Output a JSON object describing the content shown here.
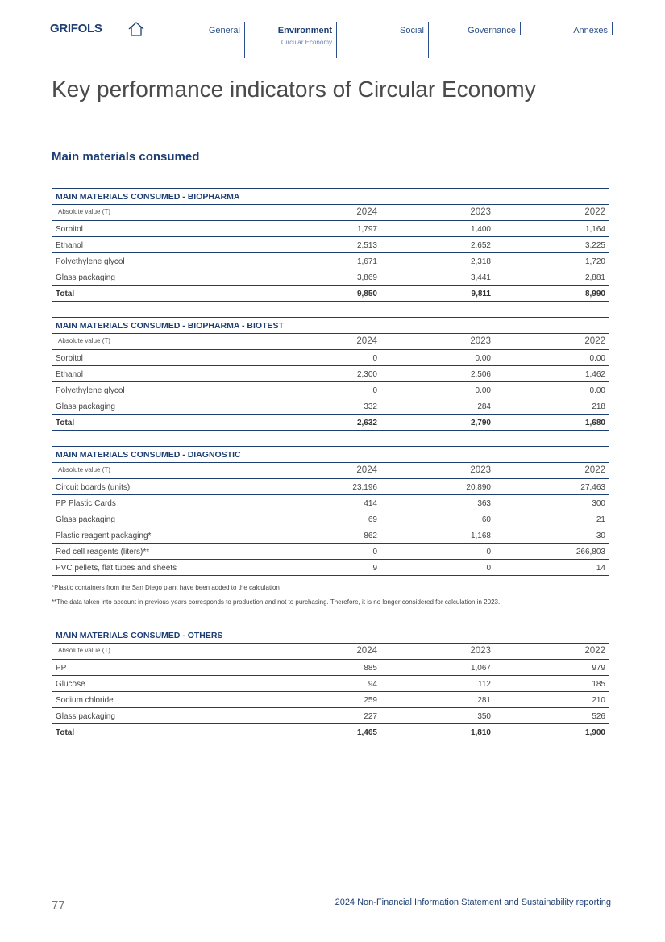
{
  "header": {
    "logo": "GRIFOLS",
    "nav": [
      {
        "label": "General"
      },
      {
        "label": "Environment",
        "sub": "Circular Economy"
      },
      {
        "label": "Social"
      },
      {
        "label": "Governance"
      },
      {
        "label": "Annexes"
      }
    ]
  },
  "title": "Key performance indicators of Circular Economy",
  "section": "Main materials consumed",
  "tables": [
    {
      "title": "MAIN MATERIALS CONSUMED - BIOPHARMA",
      "columns": [
        "Absolute value (T)",
        "2024",
        "2023",
        "2022"
      ],
      "rows": [
        [
          "Sorbitol",
          "1,797",
          "1,400",
          "1,164"
        ],
        [
          "Ethanol",
          "2,513",
          "2,652",
          "3,225"
        ],
        [
          "Polyethylene glycol",
          "1,671",
          "2,318",
          "1,720"
        ],
        [
          "Glass packaging",
          "3,869",
          "3,441",
          "2,881"
        ]
      ],
      "total": [
        "Total",
        "9,850",
        "9,811",
        "8,990"
      ]
    },
    {
      "title": "MAIN MATERIALS CONSUMED - BIOPHARMA - BIOTEST",
      "columns": [
        "Absolute value (T)",
        "2024",
        "2023",
        "2022"
      ],
      "rows": [
        [
          "Sorbitol",
          "0",
          "0.00",
          "0.00"
        ],
        [
          "Ethanol",
          "2,300",
          "2,506",
          "1,462"
        ],
        [
          "Polyethylene glycol",
          "0",
          "0.00",
          "0.00"
        ],
        [
          "Glass packaging",
          "332",
          "284",
          "218"
        ]
      ],
      "total": [
        "Total",
        "2,632",
        "2,790",
        "1,680"
      ]
    },
    {
      "title": "MAIN MATERIALS CONSUMED - DIAGNOSTIC",
      "columns": [
        "Absolute value (T)",
        "2024",
        "2023",
        "2022"
      ],
      "rows": [
        [
          "Circuit boards (units)",
          "23,196",
          "20,890",
          "27,463"
        ],
        [
          "PP Plastic Cards",
          "414",
          "363",
          "300"
        ],
        [
          "Glass packaging",
          "69",
          "60",
          "21"
        ],
        [
          "Plastic reagent packaging*",
          "862",
          "1,168",
          "30"
        ],
        [
          "Red cell reagents (liters)**",
          "0",
          "0",
          "266,803"
        ],
        [
          "PVC pellets, flat tubes and sheets",
          "9",
          "0",
          "14"
        ]
      ],
      "notes": [
        "*Plastic containers from the San Diego plant have been added to the calculation",
        "**The data taken into account in previous years corresponds to production and not to purchasing. Therefore, it is no longer considered for calculation in 2023."
      ]
    },
    {
      "title": "MAIN MATERIALS CONSUMED - OTHERS",
      "columns": [
        "Absolute value (T)",
        "2024",
        "2023",
        "2022"
      ],
      "rows": [
        [
          "PP",
          "885",
          "1,067",
          "979"
        ],
        [
          "Glucose",
          "94",
          "112",
          "185"
        ],
        [
          "Sodium chloride",
          "259",
          "281",
          "210"
        ],
        [
          "Glass packaging",
          "227",
          "350",
          "526"
        ]
      ],
      "total": [
        "Total",
        "1,465",
        "1,810",
        "1,900"
      ]
    }
  ],
  "footer": {
    "page": "77",
    "text": "2024 Non-Financial Information Statement and Sustainability reporting"
  }
}
